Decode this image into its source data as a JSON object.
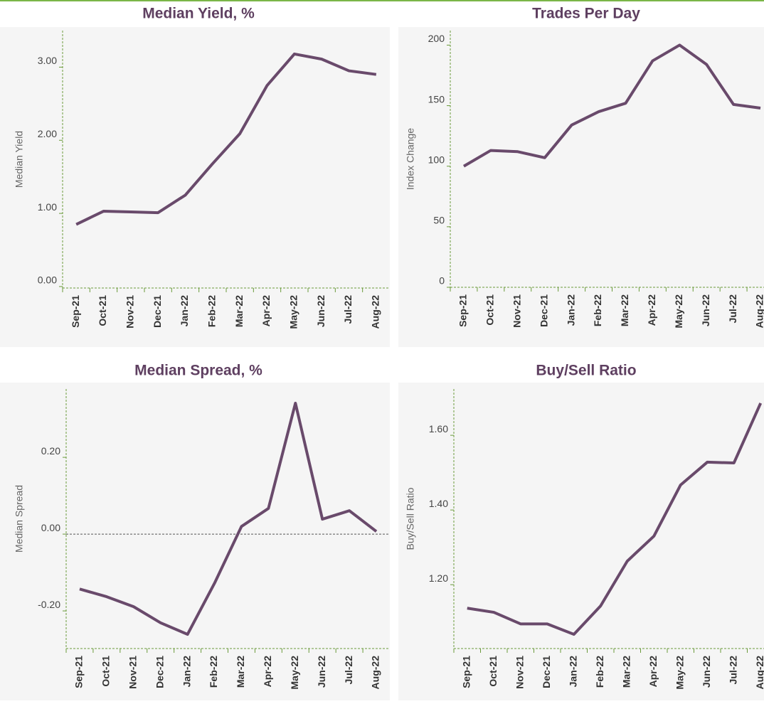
{
  "chart_data": [
    {
      "type": "line",
      "title": "Median Yield, %",
      "y_label": "Median Yield",
      "categories": [
        "Sep-21",
        "Oct-21",
        "Nov-21",
        "Dec-21",
        "Jan-22",
        "Feb-22",
        "Mar-22",
        "Apr-22",
        "May-22",
        "Jun-22",
        "Jul-22",
        "Aug-22"
      ],
      "series": [
        {
          "name": "Median Yield",
          "color": "#694a6b",
          "values": [
            0.85,
            1.03,
            1.02,
            1.01,
            1.25,
            1.68,
            2.09,
            2.75,
            3.18,
            3.11,
            2.95,
            2.9
          ]
        }
      ],
      "ylim": [
        -0.02,
        3.5
      ],
      "yticks": [
        {
          "value": 0,
          "label": "0.00"
        },
        {
          "value": 1,
          "label": "1.00"
        },
        {
          "value": 2,
          "label": "2.00"
        },
        {
          "value": 3,
          "label": "3.00"
        }
      ],
      "zero_line": false
    },
    {
      "type": "line",
      "title": "Trades Per Day",
      "y_label": "Index Change",
      "categories": [
        "Sep-21",
        "Oct-21",
        "Nov-21",
        "Dec-21",
        "Jan-22",
        "Feb-22",
        "Mar-22",
        "Apr-22",
        "May-22",
        "Jun-22",
        "Jul-22",
        "Aug-22"
      ],
      "series": [
        {
          "name": "Index Change",
          "color": "#694a6b",
          "values": [
            100,
            113,
            112,
            107,
            134,
            145,
            152,
            187,
            200,
            184,
            151,
            148
          ]
        }
      ],
      "ylim": [
        0,
        212
      ],
      "yticks": [
        0,
        50,
        100,
        150,
        200
      ],
      "zero_line": false
    },
    {
      "type": "line",
      "title": "Median Spread, %",
      "y_label": "Median Spread",
      "categories": [
        "Sep-21",
        "Oct-21",
        "Nov-21",
        "Dec-21",
        "Jan-22",
        "Feb-22",
        "Mar-22",
        "Apr-22",
        "May-22",
        "Jun-22",
        "Jul-22",
        "Aug-22"
      ],
      "series": [
        {
          "name": "Median Spread",
          "color": "#694a6b",
          "values": [
            -0.143,
            -0.163,
            -0.189,
            -0.231,
            -0.261,
            -0.128,
            0.02,
            0.067,
            0.341,
            0.039,
            0.061,
            0.007
          ]
        }
      ],
      "ylim": [
        -0.298,
        0.378
      ],
      "yticks": [
        {
          "value": -0.2,
          "label": "-0.20"
        },
        {
          "value": 0,
          "label": "0.00"
        },
        {
          "value": 0.2,
          "label": "0.20"
        }
      ],
      "zero_line": true
    },
    {
      "type": "line",
      "title": "Buy/Sell Ratio",
      "y_label": "Buy/Sell Ratio",
      "categories": [
        "Sep-21",
        "Oct-21",
        "Nov-21",
        "Dec-21",
        "Jan-22",
        "Feb-22",
        "Mar-22",
        "Apr-22",
        "May-22",
        "Jun-22",
        "Jul-22",
        "Aug-22"
      ],
      "series": [
        {
          "name": "Buy/Sell Ratio",
          "color": "#694a6b",
          "values": [
            1.137,
            1.126,
            1.095,
            1.095,
            1.067,
            1.143,
            1.263,
            1.33,
            1.467,
            1.528,
            1.526,
            1.686
          ]
        }
      ],
      "ylim": [
        1.029,
        1.724
      ],
      "yticks": [
        {
          "value": 1.2,
          "label": "1.20"
        },
        {
          "value": 1.4,
          "label": "1.40"
        },
        {
          "value": 1.6,
          "label": "1.60"
        }
      ],
      "zero_line": false
    }
  ]
}
